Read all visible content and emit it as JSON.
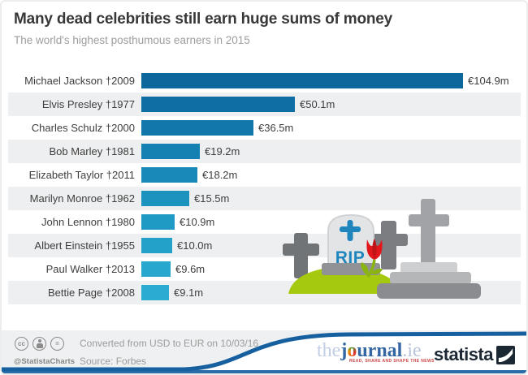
{
  "header": {
    "title": "Many dead celebrities still earn huge sums of money",
    "subtitle": "The world's highest posthumous earners in 2015"
  },
  "chart_data": {
    "type": "bar",
    "orientation": "horizontal",
    "title": "Many dead celebrities still earn huge sums of money",
    "subtitle": "The world's highest posthumous earners in 2015",
    "unit": "EUR millions",
    "xlim": [
      0,
      110
    ],
    "grid": false,
    "legend": false,
    "categories": [
      "Michael Jackson †2009",
      "Elvis Presley †1977",
      "Charles Schulz †2000",
      "Bob Marley †1981",
      "Elizabeth Taylor †2011",
      "Marilyn Monroe †1962",
      "John Lennon †1980",
      "Albert Einstein †1955",
      "Paul Walker †2013",
      "Bettie Page †2008"
    ],
    "values": [
      104.9,
      50.1,
      36.5,
      19.2,
      18.2,
      15.5,
      10.9,
      10.0,
      9.6,
      9.1
    ],
    "rows": [
      {
        "label": "Michael Jackson †2009",
        "name": "Michael Jackson",
        "death_year": "2009",
        "value": 104.9,
        "value_label": "€104.9m",
        "color": "#0c679c"
      },
      {
        "label": "Elvis Presley †1977",
        "name": "Elvis Presley",
        "death_year": "1977",
        "value": 50.1,
        "value_label": "€50.1m",
        "color": "#0f6ea4"
      },
      {
        "label": "Charles Schulz †2000",
        "name": "Charles Schulz",
        "death_year": "2000",
        "value": 36.5,
        "value_label": "€36.5m",
        "color": "#1277ab"
      },
      {
        "label": "Bob Marley †1981",
        "name": "Bob Marley",
        "death_year": "1981",
        "value": 19.2,
        "value_label": "€19.2m",
        "color": "#1580b2"
      },
      {
        "label": "Elizabeth Taylor †2011",
        "name": "Elizabeth Taylor",
        "death_year": "2011",
        "value": 18.2,
        "value_label": "€18.2m",
        "color": "#1889b8"
      },
      {
        "label": "Marilyn Monroe †1962",
        "name": "Marilyn Monroe",
        "death_year": "1962",
        "value": 15.5,
        "value_label": "€15.5m",
        "color": "#1c92bf"
      },
      {
        "label": "John Lennon †1980",
        "name": "John Lennon",
        "death_year": "1980",
        "value": 10.9,
        "value_label": "€10.9m",
        "color": "#1f9ac4"
      },
      {
        "label": "Albert Einstein †1955",
        "name": "Albert Einstein",
        "death_year": "1955",
        "value": 10.0,
        "value_label": "€10.0m",
        "color": "#23a1c9"
      },
      {
        "label": "Paul Walker †2013",
        "name": "Paul Walker",
        "death_year": "2013",
        "value": 9.6,
        "value_label": "€9.6m",
        "color": "#27a7cd"
      },
      {
        "label": "Bettie Page †2008",
        "name": "Bettie Page",
        "death_year": "2008",
        "value": 9.1,
        "value_label": "€9.1m",
        "color": "#2aacd1"
      }
    ]
  },
  "illustration": {
    "rip_text": "RIP"
  },
  "footer": {
    "handle": "@StatistaCharts",
    "note": "Converted from USD to EUR on 10/03/16",
    "source": "Source: Forbes",
    "cc": {
      "cc": "cc",
      "equal": "="
    },
    "journal": {
      "the": "the",
      "j": "j",
      "o": "o",
      "rest": "urnal",
      "tld": ".ie",
      "tagline": "READ, SHARE AND SHAPE THE NEWS"
    },
    "statista": "statista"
  },
  "colors": {
    "accent_blue": "#17609f",
    "footer_strip_blue": "#2b6ca9",
    "stripe_gray": "#eeeff0",
    "grass_green": "#a5c90f",
    "tulip_red": "#e2171c",
    "rip_blue": "#1e86bd",
    "title_text": "#383838",
    "subtitle_text": "#9d9d9d"
  }
}
